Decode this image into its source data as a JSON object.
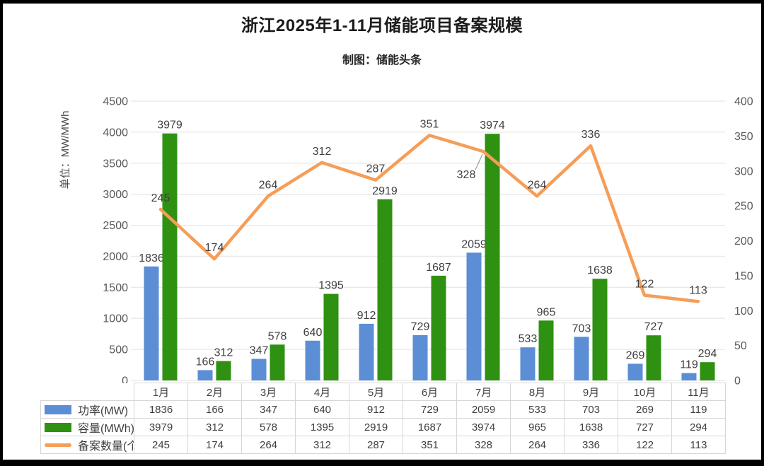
{
  "title": "浙江2025年1-11月储能项目备案规模",
  "subtitle": "制图：储能头条",
  "chart_data": {
    "type": "combo-bar-line",
    "categories": [
      "1月",
      "2月",
      "3月",
      "4月",
      "5月",
      "6月",
      "7月",
      "8月",
      "9月",
      "10月",
      "11月"
    ],
    "series": [
      {
        "name": "功率(MW)",
        "type": "bar",
        "axis": "left",
        "color": "#5B8ED5",
        "values": [
          1836,
          166,
          347,
          640,
          912,
          729,
          2059,
          533,
          703,
          269,
          119
        ]
      },
      {
        "name": "容量(MWh)",
        "type": "bar",
        "axis": "left",
        "color": "#2E9111",
        "values": [
          3979,
          312,
          578,
          1395,
          2919,
          1687,
          3974,
          965,
          1638,
          727,
          294
        ]
      },
      {
        "name": "备案数量(个)",
        "type": "line",
        "axis": "right",
        "color": "#F69D57",
        "values": [
          245,
          174,
          264,
          312,
          287,
          351,
          328,
          264,
          336,
          122,
          113
        ]
      }
    ],
    "left_axis": {
      "title": "单位：MW/MWh",
      "min": 0,
      "max": 4500,
      "step": 500
    },
    "right_axis": {
      "min": 0,
      "max": 400,
      "step": 50
    },
    "grid": "horizontal",
    "legend_position": "table-left",
    "data_labels": true,
    "annotations": [
      {
        "series": "备案数量(个)",
        "category": "7月",
        "label_placement": "below-with-leader"
      }
    ]
  },
  "colors": {
    "grid": "#e8e8e8",
    "axis_text": "#595959",
    "label_text": "#3f3f3f",
    "table_border": "#d6d6d6",
    "leader_line": "#9a9a9a",
    "frame": "#000000"
  }
}
